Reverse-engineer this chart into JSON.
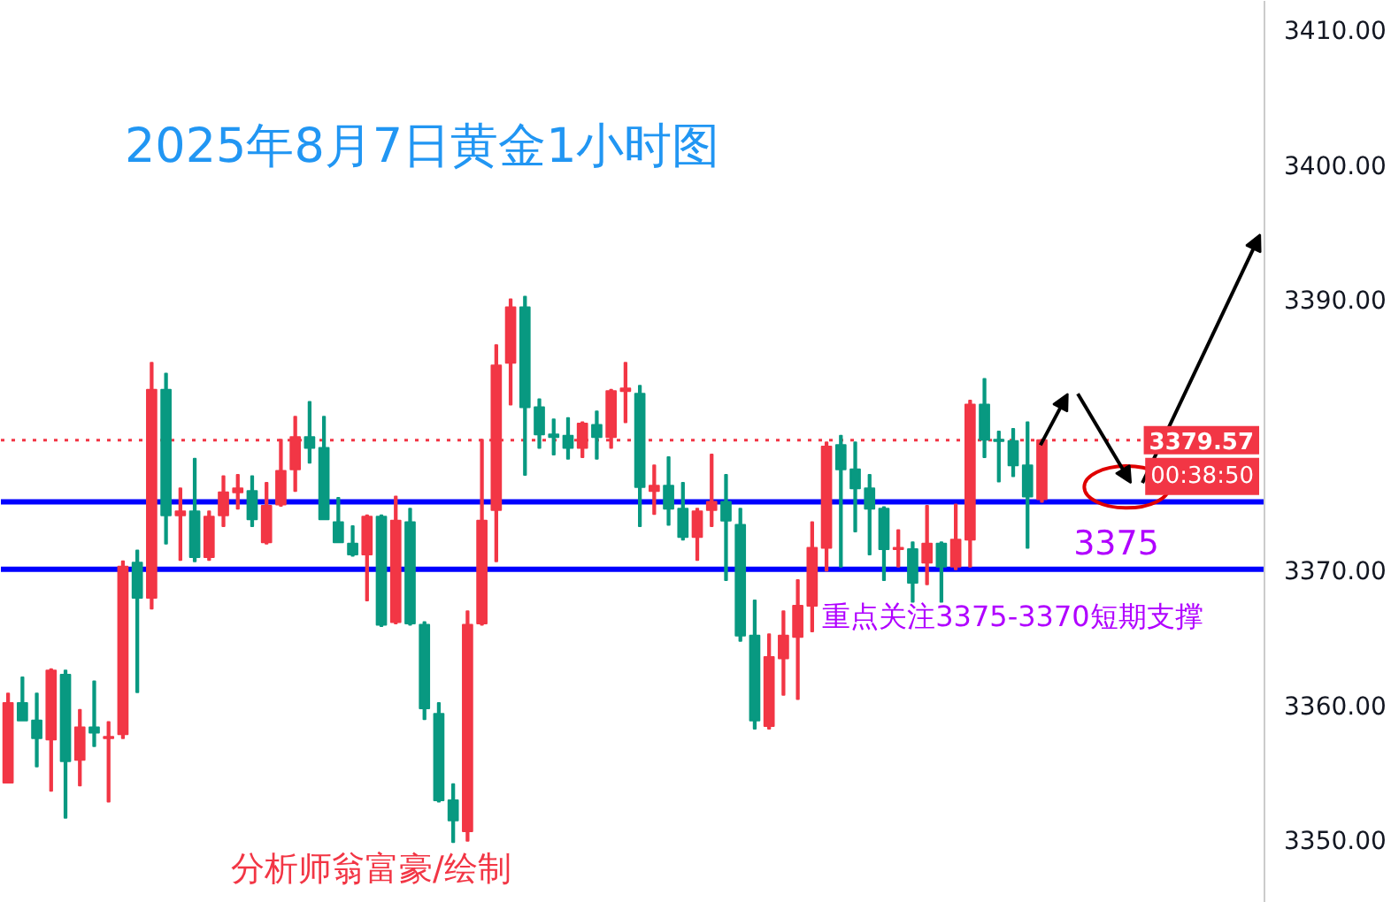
{
  "chart_data": {
    "type": "candlestick",
    "title": "2025年8月7日黄金1小时图",
    "categories": [
      null,
      null,
      null,
      null,
      null,
      null,
      null,
      null,
      null,
      null,
      null,
      null,
      null,
      null,
      null,
      null,
      null,
      null,
      null,
      null,
      null,
      null,
      null,
      null,
      null,
      null,
      null,
      null,
      null,
      null,
      null,
      null,
      null,
      null,
      null,
      null,
      null,
      null,
      null,
      null,
      null,
      null,
      null,
      null,
      null,
      null,
      null,
      null,
      null,
      null,
      null,
      null,
      null,
      null,
      null,
      null,
      null,
      null,
      null,
      null,
      null,
      null,
      null,
      null,
      null,
      null,
      null,
      null,
      null,
      null,
      null,
      null,
      null,
      null,
      null,
      null,
      null,
      null,
      null,
      null,
      null,
      null,
      null,
      null,
      null,
      null,
      null,
      null
    ],
    "ohlc": [
      [
        3354.2,
        3360.8,
        3354.2,
        3360.1
      ],
      [
        3360.1,
        3362.0,
        3358.8,
        3358.8
      ],
      [
        3358.8,
        3360.8,
        3355.4,
        3357.5
      ],
      [
        3357.4,
        3362.6,
        3353.6,
        3362.5
      ],
      [
        3362.2,
        3362.5,
        3351.6,
        3355.8
      ],
      [
        3355.9,
        3359.6,
        3354.0,
        3358.3
      ],
      [
        3358.3,
        3361.7,
        3356.9,
        3357.9
      ],
      [
        3357.5,
        3358.7,
        3352.8,
        3357.6
      ],
      [
        3357.8,
        3370.6,
        3357.5,
        3370.2
      ],
      [
        3370.5,
        3371.4,
        3360.9,
        3367.9
      ],
      [
        3367.9,
        3385.3,
        3367.1,
        3383.3
      ],
      [
        3383.3,
        3384.5,
        3371.9,
        3374.0
      ],
      [
        3374.0,
        3376.0,
        3370.7,
        3374.3
      ],
      [
        3374.3,
        3378.2,
        3370.6,
        3370.9
      ],
      [
        3370.9,
        3374.3,
        3370.7,
        3373.9
      ],
      [
        3374.0,
        3376.9,
        3373.2,
        3375.7
      ],
      [
        3375.7,
        3377.0,
        3374.5,
        3376.0
      ],
      [
        3375.8,
        3376.9,
        3373.2,
        3373.7
      ],
      [
        3372.0,
        3376.4,
        3371.9,
        3374.7
      ],
      [
        3374.8,
        3379.6,
        3374.7,
        3377.3
      ],
      [
        3377.4,
        3381.3,
        3375.8,
        3379.8
      ],
      [
        3379.8,
        3382.4,
        3377.9,
        3379.0
      ],
      [
        3379.0,
        3381.3,
        3373.7,
        3373.7
      ],
      [
        3373.5,
        3375.3,
        3372.0,
        3372.0
      ],
      [
        3371.9,
        3373.2,
        3371.0,
        3371.1
      ],
      [
        3371.1,
        3374.0,
        3367.7,
        3373.9
      ],
      [
        3373.9,
        3374.0,
        3365.8,
        3365.9
      ],
      [
        3366.1,
        3375.4,
        3366.0,
        3373.6
      ],
      [
        3373.5,
        3374.5,
        3365.9,
        3366.0
      ],
      [
        3365.9,
        3366.1,
        3358.9,
        3359.7
      ],
      [
        3359.3,
        3360.1,
        3352.8,
        3352.9
      ],
      [
        3352.9,
        3354.1,
        3349.8,
        3351.4
      ],
      [
        3350.6,
        3366.9,
        3349.9,
        3365.9
      ],
      [
        3366.0,
        3379.6,
        3365.9,
        3373.6
      ],
      [
        3374.4,
        3386.6,
        3370.6,
        3385.1
      ],
      [
        3385.3,
        3390.0,
        3382.2,
        3389.4
      ],
      [
        3389.4,
        3390.2,
        3377.0,
        3382.0
      ],
      [
        3382.0,
        3382.6,
        3379.0,
        3380.0
      ],
      [
        3380.0,
        3381.1,
        3378.5,
        3379.8
      ],
      [
        3379.9,
        3381.2,
        3378.2,
        3379.0
      ],
      [
        3379.0,
        3380.9,
        3378.3,
        3380.8
      ],
      [
        3380.7,
        3381.7,
        3378.2,
        3379.8
      ],
      [
        3379.8,
        3383.3,
        3379.0,
        3383.2
      ],
      [
        3383.2,
        3385.3,
        3380.9,
        3383.4
      ],
      [
        3383.0,
        3383.6,
        3373.2,
        3376.1
      ],
      [
        3375.8,
        3377.7,
        3374.1,
        3376.2
      ],
      [
        3376.2,
        3378.3,
        3373.3,
        3374.5
      ],
      [
        3374.5,
        3376.4,
        3372.2,
        3372.4
      ],
      [
        3372.4,
        3374.5,
        3370.7,
        3374.3
      ],
      [
        3374.4,
        3378.5,
        3373.2,
        3375.0
      ],
      [
        3375.0,
        3377.0,
        3369.2,
        3373.6
      ],
      [
        3373.3,
        3374.5,
        3364.7,
        3365.1
      ],
      [
        3365.1,
        3367.7,
        3358.2,
        3358.8
      ],
      [
        3358.4,
        3365.2,
        3358.2,
        3363.5
      ],
      [
        3363.4,
        3366.9,
        3360.7,
        3365.1
      ],
      [
        3365.0,
        3369.2,
        3360.4,
        3367.3
      ],
      [
        3367.3,
        3373.5,
        3365.4,
        3371.6
      ],
      [
        3371.6,
        3379.4,
        3369.9,
        3379.1
      ],
      [
        3379.2,
        3379.9,
        3370.2,
        3377.4
      ],
      [
        3377.4,
        3379.4,
        3372.8,
        3376.0
      ],
      [
        3376.0,
        3377.0,
        3371.1,
        3374.5
      ],
      [
        3374.5,
        3374.6,
        3369.2,
        3371.5
      ],
      [
        3371.5,
        3372.9,
        3370.2,
        3371.6
      ],
      [
        3371.5,
        3372.0,
        3367.6,
        3369.0
      ],
      [
        3370.5,
        3374.7,
        3368.9,
        3371.9
      ],
      [
        3371.9,
        3372.0,
        3367.6,
        3370.2
      ],
      [
        3370.2,
        3374.8,
        3370.0,
        3372.2
      ],
      [
        3372.2,
        3382.5,
        3370.2,
        3382.2
      ],
      [
        3382.2,
        3384.1,
        3378.3,
        3379.6
      ],
      [
        3379.6,
        3380.2,
        3376.5,
        3379.5
      ],
      [
        3379.5,
        3380.4,
        3376.9,
        3377.7
      ],
      [
        3377.7,
        3380.9,
        3371.6,
        3375.4
      ],
      [
        3375.2,
        3379.6,
        3375.0,
        3379.57
      ],
      null,
      null,
      null,
      null,
      null,
      null,
      null,
      null,
      null,
      null,
      null,
      null,
      null,
      null,
      null
    ],
    "colors": [
      "#f23645",
      "#089981",
      "#089981",
      "#f23645",
      "#089981",
      "#f23645",
      "#089981",
      "#f23645",
      "#f23645",
      "#089981",
      "#f23645",
      "#089981",
      "#f23645",
      "#089981",
      "#f23645",
      "#f23645",
      "#f23645",
      "#089981",
      "#f23645",
      "#f23645",
      "#f23645",
      "#089981",
      "#089981",
      "#089981",
      "#089981",
      "#f23645",
      "#089981",
      "#f23645",
      "#089981",
      "#089981",
      "#089981",
      "#089981",
      "#f23645",
      "#f23645",
      "#f23645",
      "#f23645",
      "#089981",
      "#089981",
      "#089981",
      "#089981",
      "#f23645",
      "#089981",
      "#f23645",
      "#f23645",
      "#089981",
      "#f23645",
      "#089981",
      "#089981",
      "#f23645",
      "#f23645",
      "#089981",
      "#089981",
      "#089981",
      "#f23645",
      "#f23645",
      "#f23645",
      "#f23645",
      "#f23645",
      "#089981",
      "#089981",
      "#089981",
      "#089981",
      "#f23645",
      "#089981",
      "#f23645",
      "#089981",
      "#f23645",
      "#f23645",
      "#089981",
      "#089981",
      "#089981",
      "#089981",
      "#f23645",
      null,
      null,
      null,
      null,
      null,
      null,
      null,
      null,
      null,
      null,
      null,
      null,
      null,
      null,
      null
    ],
    "ylim": [
      3345.3,
      3412.1
    ],
    "yticks": [
      {
        "value": 3350,
        "label": "3350.00"
      },
      {
        "value": 3360,
        "label": "3360.00"
      },
      {
        "value": 3370,
        "label": "3370.00"
      },
      {
        "value": 3390,
        "label": "3390.00"
      },
      {
        "value": 3400,
        "label": "3400.00"
      },
      {
        "value": 3410,
        "label": "3410.00"
      }
    ],
    "ref_lines": [
      {
        "axis": "y",
        "value": 3379.57,
        "label": "3379.57",
        "color": "#f23645",
        "line_style": "dotted"
      },
      {
        "axis": "y",
        "value": 3375,
        "color": "#0000ff",
        "line_style": "solid"
      },
      {
        "axis": "y",
        "value": 3370,
        "color": "#0000ff",
        "line_style": "solid"
      }
    ],
    "annotations": [
      "分析师翁富豪/绘制",
      {
        "text": "3375",
        "y": 3375
      },
      {
        "text": "重点关注3375-3370短期支撑",
        "y": 3370
      },
      "00:38:50"
    ]
  }
}
